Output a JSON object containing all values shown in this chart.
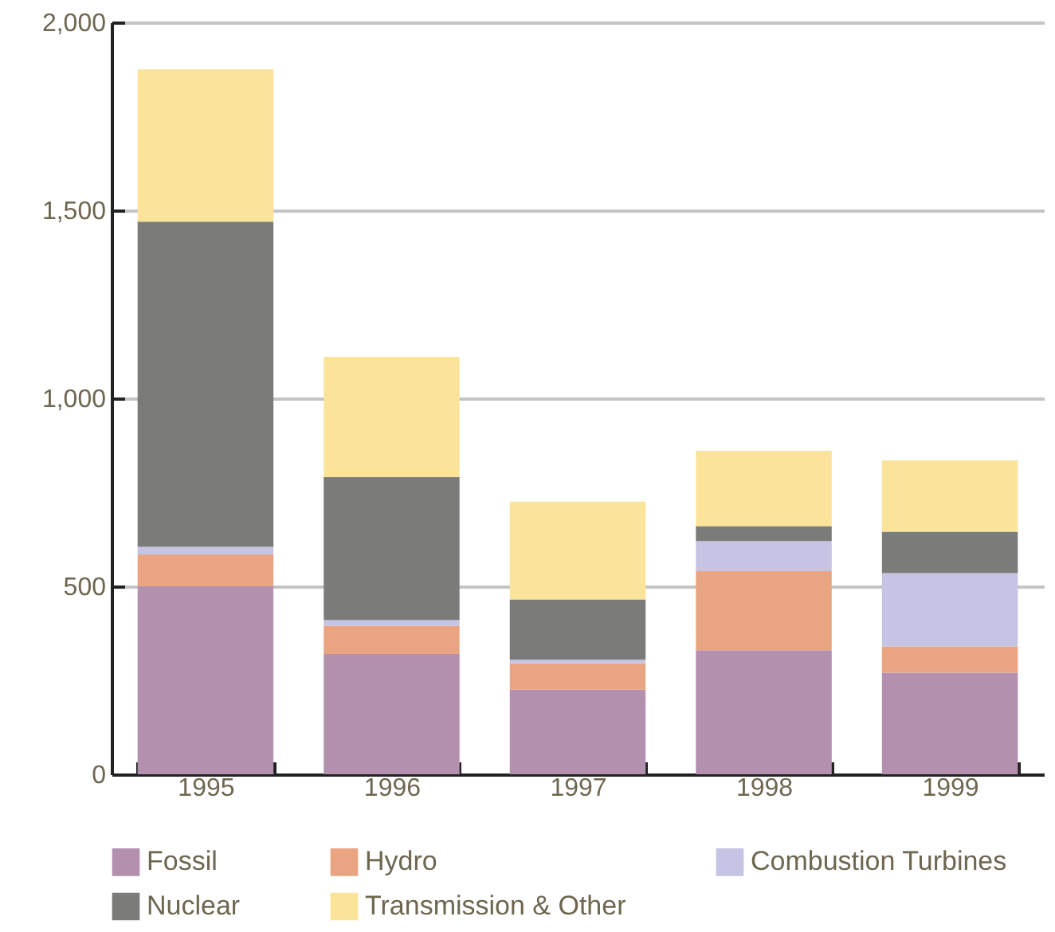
{
  "chart_data": {
    "type": "bar",
    "stacked": true,
    "categories": [
      "1995",
      "1996",
      "1997",
      "1998",
      "1999"
    ],
    "ylim": [
      0,
      2000
    ],
    "yticks": [
      0,
      500,
      {
        "value": 1000,
        "label": "1,000"
      },
      {
        "value": 1500,
        "label": "1,500"
      },
      {
        "value": 2000,
        "label": "2,000"
      }
    ],
    "grid": "y",
    "legend": "bottom",
    "series": [
      {
        "name": "Fossil",
        "color": "#b391ae",
        "values": [
          500,
          320,
          225,
          330,
          270
        ]
      },
      {
        "name": "Hydro",
        "color": "#e9a582",
        "values": [
          85,
          75,
          70,
          210,
          70
        ]
      },
      {
        "name": "Combustion Turbines",
        "color": "#c6c4e4",
        "values": [
          20,
          15,
          10,
          80,
          195
        ]
      },
      {
        "name": "Nuclear",
        "color": "#7b7c79",
        "values": [
          865,
          380,
          160,
          40,
          110
        ]
      },
      {
        "name": "Transmission & Other",
        "color": "#fbe49a",
        "values": [
          405,
          320,
          260,
          200,
          190
        ]
      }
    ]
  }
}
